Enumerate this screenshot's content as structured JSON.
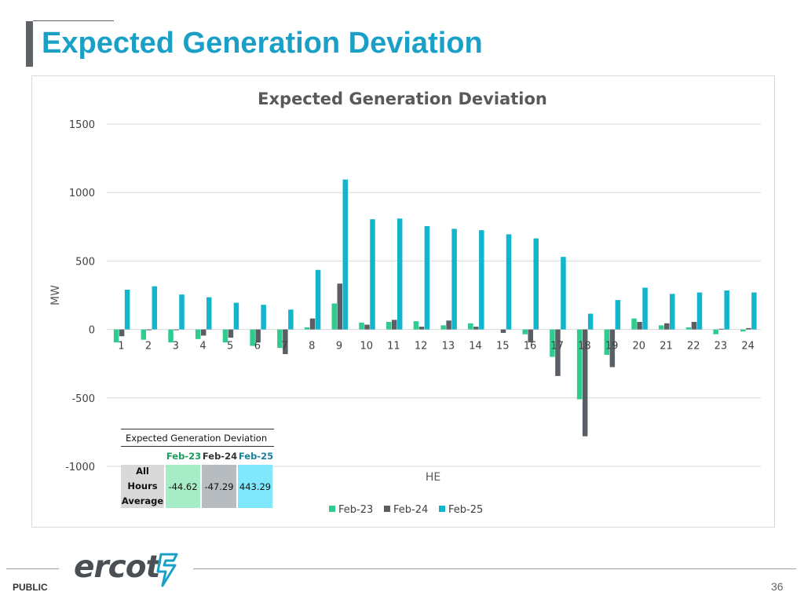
{
  "header": {
    "title": "Expected Generation Deviation"
  },
  "chart_data": {
    "type": "bar",
    "title": "Expected Generation Deviation",
    "xlabel": "HE",
    "ylabel": "MW",
    "ylim": [
      -1000,
      1500
    ],
    "yticks": [
      1500,
      1000,
      500,
      0,
      -500,
      -1000
    ],
    "grid": true,
    "legend_position": "bottom-center",
    "categories": [
      "1",
      "2",
      "3",
      "4",
      "5",
      "6",
      "7",
      "8",
      "9",
      "10",
      "11",
      "12",
      "13",
      "14",
      "15",
      "16",
      "17",
      "18",
      "19",
      "20",
      "21",
      "22",
      "23",
      "24"
    ],
    "series": [
      {
        "name": "Feb-23",
        "color": "#2ecc8f",
        "values": [
          -95,
          -75,
          -95,
          -70,
          -95,
          -120,
          -135,
          15,
          190,
          50,
          55,
          60,
          30,
          45,
          0,
          -35,
          -200,
          -510,
          -185,
          80,
          30,
          15,
          -35,
          -15
        ]
      },
      {
        "name": "Feb-24",
        "color": "#595f64",
        "values": [
          -50,
          -5,
          -5,
          -45,
          -60,
          -95,
          -180,
          80,
          335,
          35,
          70,
          20,
          65,
          20,
          -25,
          -95,
          -340,
          -780,
          -275,
          55,
          45,
          55,
          5,
          10
        ]
      },
      {
        "name": "Feb-25",
        "color": "#13b5cc",
        "values": [
          290,
          315,
          255,
          235,
          195,
          180,
          145,
          435,
          1095,
          805,
          810,
          755,
          735,
          725,
          695,
          665,
          530,
          115,
          215,
          305,
          260,
          270,
          285,
          270
        ]
      }
    ]
  },
  "summary_table": {
    "title": "Expected Generation Deviation",
    "headers": [
      "Feb-23",
      "Feb-24",
      "Feb-25"
    ],
    "header_colors": [
      "#1a9c5e",
      "#333333",
      "#1a7f9c"
    ],
    "row_label_lines": [
      "All",
      "Hours",
      "Average"
    ],
    "values": [
      "-44.62",
      "-47.29",
      "443.29"
    ]
  },
  "footer": {
    "logo_text": "ercot",
    "classification": "PUBLIC",
    "page_number": "36"
  }
}
